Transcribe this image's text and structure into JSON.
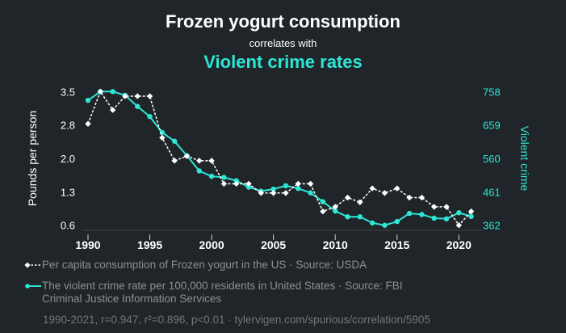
{
  "header": {
    "title": "Frozen yogurt consumption",
    "subtitle": "correlates with",
    "title2": "Violent crime rates"
  },
  "colors": {
    "background": "#1f2528",
    "series1": "#ffffff",
    "series2": "#2ee6d6",
    "legend_text": "#8b9092"
  },
  "legend": {
    "series1": "Per capita consumption of Frozen yogurt in the US · Source: USDA",
    "series2_line1": "The violent crime rate per 100,000 residents in United States · Source: FBI",
    "series2_line2": "Criminal Justice Information Services"
  },
  "footer": "1990-2021, r=0.947, r²=0.896, p<0.01 · tylervigen.com/spurious/correlation/5905",
  "chart_data": {
    "type": "line",
    "title": "Frozen yogurt consumption correlates with Violent crime rates",
    "xlabel": "",
    "ylabel_left": "Pounds per person",
    "ylabel_right": "Violent crime",
    "x": [
      1990,
      1991,
      1992,
      1993,
      1994,
      1995,
      1996,
      1997,
      1998,
      1999,
      2000,
      2001,
      2002,
      2003,
      2004,
      2005,
      2006,
      2007,
      2008,
      2009,
      2010,
      2011,
      2012,
      2013,
      2014,
      2015,
      2016,
      2017,
      2018,
      2019,
      2020,
      2021
    ],
    "x_ticks": [
      "1990",
      "1995",
      "2000",
      "2005",
      "2010",
      "2015",
      "2020"
    ],
    "x_tick_values": [
      1990,
      1995,
      2000,
      2005,
      2010,
      2015,
      2020
    ],
    "xlim": [
      1989.5,
      2021.8
    ],
    "y_left_ticks": [
      "3.5",
      "2.8",
      "2.0",
      "1.3",
      "0.6"
    ],
    "y_left_tick_values": [
      3.5,
      2.775,
      2.05,
      1.325,
      0.6
    ],
    "ylim_left": [
      0.6,
      3.5
    ],
    "y_right_ticks": [
      "758",
      "659",
      "560",
      "461",
      "362"
    ],
    "y_right_tick_values": [
      758,
      659,
      560,
      461,
      362
    ],
    "ylim_right": [
      362,
      758
    ],
    "grid": false,
    "legend_position": "bottom",
    "series": [
      {
        "name": "Per capita consumption of Frozen yogurt in the US",
        "axis": "left",
        "style": "dashed-white-diamond",
        "values": [
          2.8,
          3.5,
          3.1,
          3.4,
          3.4,
          3.4,
          2.5,
          2.0,
          2.1,
          2.0,
          2.0,
          1.5,
          1.5,
          1.5,
          1.3,
          1.3,
          1.3,
          1.5,
          1.5,
          0.9,
          1.0,
          1.2,
          1.1,
          1.4,
          1.3,
          1.4,
          1.2,
          1.2,
          1.0,
          1.0,
          0.6,
          0.9
        ]
      },
      {
        "name": "The violent crime rate per 100,000 residents in United States",
        "axis": "right",
        "style": "solid-teal-dot",
        "values": [
          732,
          758,
          758,
          747,
          714,
          684,
          637,
          611,
          568,
          523,
          507,
          504,
          494,
          475,
          463,
          469,
          479,
          471,
          458,
          432,
          404,
          387,
          387,
          369,
          362,
          373,
          397,
          394,
          383,
          381,
          399,
          388
        ]
      }
    ]
  }
}
